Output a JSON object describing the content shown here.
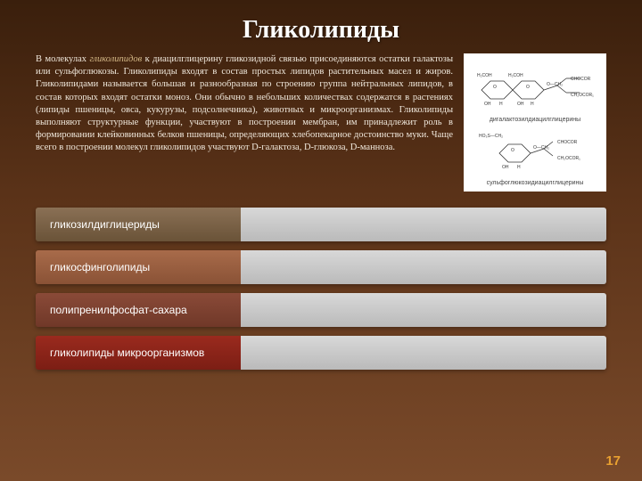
{
  "title": "Гликолипиды",
  "body_html": "В молекулах <span class='hl'>гликолипидов</span> к диацилглицерину гликозидной связью присоединяются остатки галактозы или сульфоглюкозы. Гликолипиды входят в состав простых липидов растительных масел и жиров.  Гликолипидами называется большая и  разнообразная по строению группа нейтральных липидов, в состав которых входят остатки моноз. Они обычно в небольших количествах содержатся в растениях (липиды пшеницы, овса, кукурузы, подсолнечника), животных и микроорганизмах. Гликолипиды выполняют структурные функции, участвуют в построении мембран, им принадлежит роль в формировании клейковинных белков пшеницы, определяющих хлебопекарное достоинство муки. Чаще всего в построении молекул гликолипидов участвуют D-галактоза, D-глюкоза, D-манноза.",
  "diagram": {
    "label1": "дигалактозилдиацилглицерины",
    "label2": "сульфоглюкозидиацилглицерины"
  },
  "bars": [
    {
      "label": "гликозилдиглицериды",
      "color_top": "#8a7055",
      "color_bottom": "#6a5338"
    },
    {
      "label": "гликосфинголипиды",
      "color_top": "#a86b4a",
      "color_bottom": "#8a5236"
    },
    {
      "label": "полипренилфосфат-сахара",
      "color_top": "#8a4a38",
      "color_bottom": "#703828"
    },
    {
      "label": "гликолипиды микроорганизмов",
      "color_top": "#9a2a1e",
      "color_bottom": "#7c1e14"
    }
  ],
  "page_number": "17"
}
